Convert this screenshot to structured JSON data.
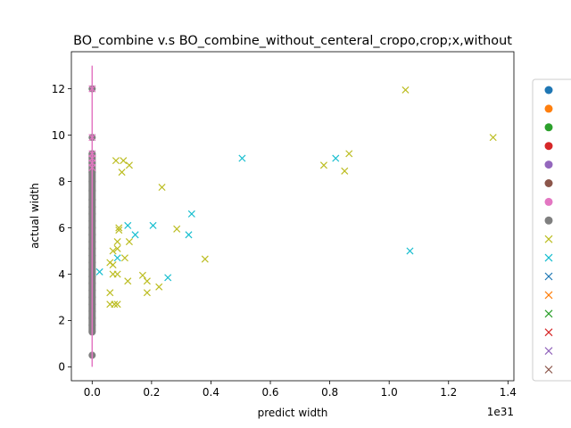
{
  "chart_data": {
    "type": "scatter",
    "title": "BO_combine v.s BO_combine_without_centeral_cropo,crop;x,without",
    "xlabel": "predict width",
    "ylabel": "actual width",
    "x_offset_label": "1e31",
    "x_scale": 1e+31,
    "xlim": [
      -7e+29,
      1.42e+31
    ],
    "ylim": [
      -0.6,
      13.6
    ],
    "x_ticks": [
      0.0,
      0.2,
      0.4,
      0.6,
      0.8,
      1.0,
      1.2,
      1.4
    ],
    "x_tick_labels": [
      "0.0",
      "0.2",
      "0.4",
      "0.6",
      "0.8",
      "1.0",
      "1.2",
      "1.4"
    ],
    "y_ticks": [
      0,
      2,
      4,
      6,
      8,
      10,
      12
    ],
    "y_tick_labels": [
      "0",
      "2",
      "4",
      "6",
      "8",
      "10",
      "12"
    ],
    "grid": false,
    "legend_position": "right (clipped)",
    "legend_markers": [
      {
        "marker": "o",
        "color": "#1f77b4"
      },
      {
        "marker": "o",
        "color": "#ff7f0e"
      },
      {
        "marker": "o",
        "color": "#2ca02c"
      },
      {
        "marker": "o",
        "color": "#d62728"
      },
      {
        "marker": "o",
        "color": "#9467bd"
      },
      {
        "marker": "o",
        "color": "#8c564b"
      },
      {
        "marker": "o",
        "color": "#e377c2"
      },
      {
        "marker": "o",
        "color": "#7f7f7f"
      },
      {
        "marker": "x",
        "color": "#bcbd22"
      },
      {
        "marker": "x",
        "color": "#17becf"
      },
      {
        "marker": "x",
        "color": "#1f77b4"
      },
      {
        "marker": "x",
        "color": "#ff7f0e"
      },
      {
        "marker": "x",
        "color": "#2ca02c"
      },
      {
        "marker": "x",
        "color": "#d62728"
      },
      {
        "marker": "x",
        "color": "#9467bd"
      },
      {
        "marker": "x",
        "color": "#8c564b"
      }
    ],
    "reference_line": {
      "x": 0,
      "y": [
        0,
        13
      ],
      "color": "#e377c2"
    },
    "series": [
      {
        "marker": "o",
        "color": "#7f7f7f",
        "points": [
          [
            0,
            0.5
          ],
          [
            0,
            1.5
          ],
          [
            0,
            1.8
          ],
          [
            0,
            2.1
          ],
          [
            0,
            2.4
          ],
          [
            0,
            2.7
          ],
          [
            0,
            3.0
          ],
          [
            0,
            3.3
          ],
          [
            0,
            3.6
          ],
          [
            0,
            3.9
          ],
          [
            0,
            4.2
          ],
          [
            0,
            4.5
          ],
          [
            0,
            4.8
          ],
          [
            0,
            5.1
          ],
          [
            0,
            5.4
          ],
          [
            0,
            5.7
          ],
          [
            0,
            6.0
          ],
          [
            0,
            6.3
          ],
          [
            0,
            6.6
          ],
          [
            0,
            6.9
          ],
          [
            0,
            7.2
          ],
          [
            0,
            7.6
          ],
          [
            0,
            8.0
          ],
          [
            0,
            8.4
          ],
          [
            0,
            8.8
          ],
          [
            0,
            9.2
          ],
          [
            0,
            9.9
          ],
          [
            0,
            12.0
          ]
        ]
      },
      {
        "marker": "x",
        "color": "#e377c2",
        "points": [
          [
            0,
            8.6
          ],
          [
            0,
            8.8
          ],
          [
            0,
            9.0
          ],
          [
            0,
            9.2
          ],
          [
            0,
            9.9
          ],
          [
            0,
            12.0
          ]
        ]
      },
      {
        "marker": "x",
        "color": "#bcbd22",
        "points": [
          [
            6e+29,
            4.5
          ],
          [
            7e+29,
            4.4
          ],
          [
            6e+29,
            3.2
          ],
          [
            6e+29,
            2.7
          ],
          [
            7.5e+29,
            2.7
          ],
          [
            8.5e+29,
            2.7
          ],
          [
            7e+29,
            4.0
          ],
          [
            8.5e+29,
            4.0
          ],
          [
            7e+29,
            5.0
          ],
          [
            8.5e+29,
            5.1
          ],
          [
            8.5e+29,
            5.4
          ],
          [
            9e+29,
            5.9
          ],
          [
            9e+29,
            6.0
          ],
          [
            1.1e+30,
            4.7
          ],
          [
            8e+29,
            8.9
          ],
          [
            1.05e+30,
            8.9
          ],
          [
            1e+30,
            8.4
          ],
          [
            1.25e+30,
            8.7
          ],
          [
            1.25e+30,
            5.4
          ],
          [
            1.2e+30,
            3.7
          ],
          [
            1.7e+30,
            3.95
          ],
          [
            1.85e+30,
            3.7
          ],
          [
            1.85e+30,
            3.2
          ],
          [
            2.25e+30,
            3.45
          ],
          [
            2.35e+30,
            7.75
          ],
          [
            2.85e+30,
            5.95
          ],
          [
            3.8e+30,
            4.65
          ],
          [
            7.8e+30,
            8.7
          ],
          [
            8.5e+30,
            8.45
          ],
          [
            8.65e+30,
            9.2
          ],
          [
            1.055e+31,
            11.95
          ],
          [
            1.35e+31,
            9.9
          ]
        ]
      },
      {
        "marker": "x",
        "color": "#17becf",
        "points": [
          [
            2.5e+29,
            4.1
          ],
          [
            8.5e+29,
            4.7
          ],
          [
            1.2e+30,
            6.1
          ],
          [
            1.45e+30,
            5.7
          ],
          [
            2.05e+30,
            6.1
          ],
          [
            2.55e+30,
            3.85
          ],
          [
            3.25e+30,
            5.7
          ],
          [
            3.35e+30,
            6.6
          ],
          [
            5.05e+30,
            9.0
          ],
          [
            8.2e+30,
            9.0
          ],
          [
            1.07e+31,
            5.0
          ]
        ]
      }
    ]
  }
}
